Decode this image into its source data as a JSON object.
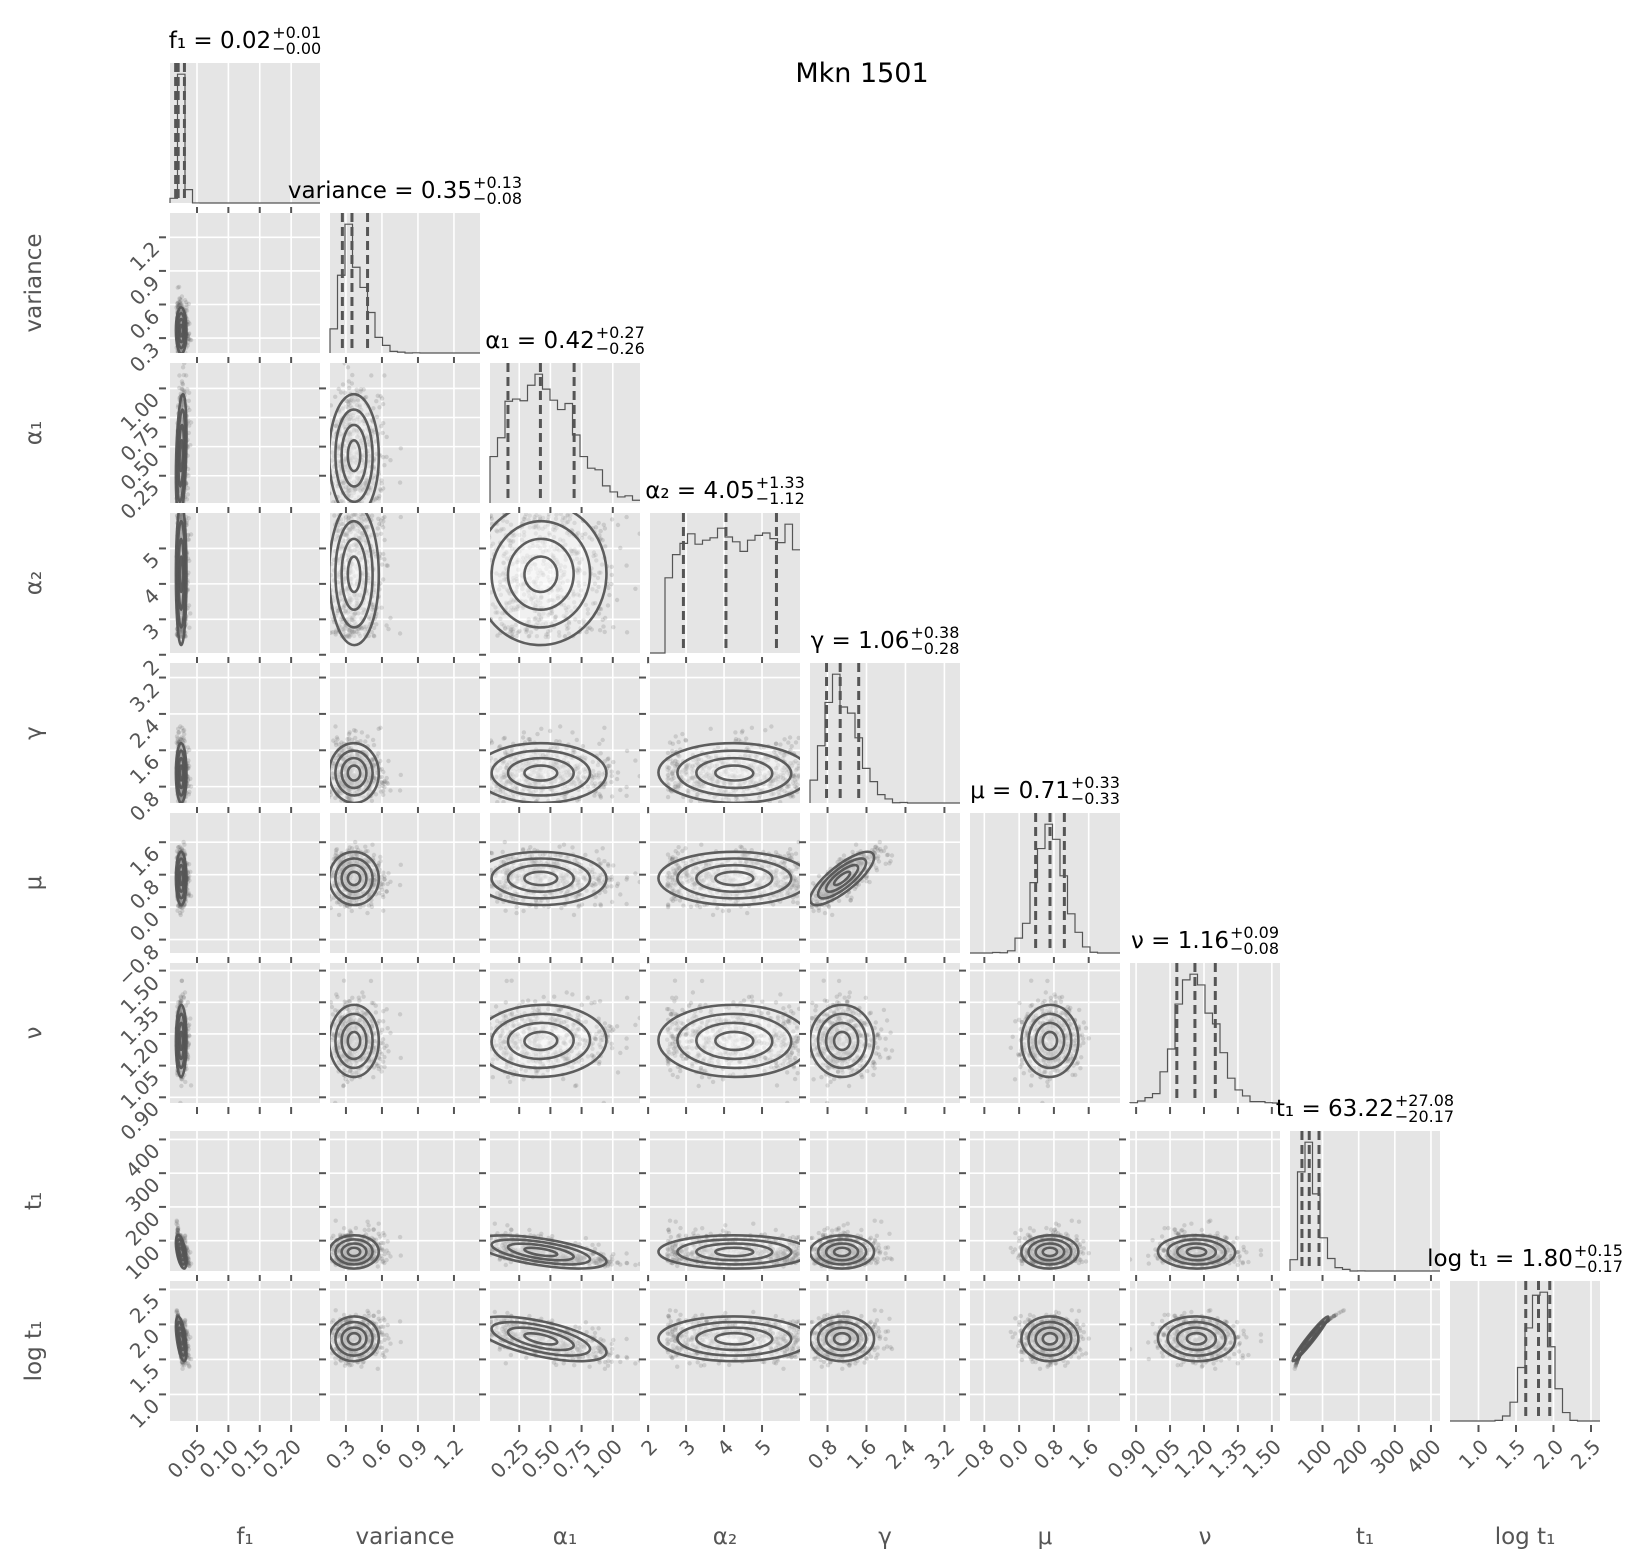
{
  "chart_data": {
    "type": "corner",
    "title": "Mkn 1501",
    "quantiles": [
      0.16,
      0.5,
      0.84
    ],
    "grid": true,
    "params": [
      {
        "label": "f₁",
        "title_main": "f₁ = 0.02",
        "title_plus": "+0.01",
        "title_minus": "−0.00",
        "median": 0.02,
        "plus": 0.01,
        "minus": 0.004,
        "range": [
          0.007,
          0.246
        ],
        "ticks": [
          0.05,
          0.1,
          0.15,
          0.2
        ],
        "tick_labels": [
          "0.05",
          "0.10",
          "0.15",
          "0.20"
        ]
      },
      {
        "label": "variance",
        "title_main": "variance = 0.35",
        "title_plus": "+0.13",
        "title_minus": "−0.08",
        "median": 0.35,
        "plus": 0.13,
        "minus": 0.08,
        "range": [
          0.167,
          1.417
        ],
        "ticks": [
          0.3,
          0.6,
          0.9,
          1.2
        ],
        "tick_labels": [
          "0.3",
          "0.6",
          "0.9",
          "1.2"
        ]
      },
      {
        "label": "α₁",
        "title_main": "α₁ = 0.42",
        "title_plus": "+0.27",
        "title_minus": "−0.26",
        "median": 0.42,
        "plus": 0.27,
        "minus": 0.26,
        "range": [
          0.016,
          1.218
        ],
        "ticks": [
          0.25,
          0.5,
          0.75,
          1.0
        ],
        "tick_labels": [
          "0.25",
          "0.50",
          "0.75",
          "1.00"
        ]
      },
      {
        "label": "α₂",
        "title_main": "α₂ = 4.05",
        "title_plus": "+1.33",
        "title_minus": "−1.12",
        "median": 4.05,
        "plus": 1.33,
        "minus": 1.12,
        "range": [
          2.05,
          6.0
        ],
        "ticks": [
          2,
          3,
          4,
          5
        ],
        "tick_labels": [
          "2",
          "3",
          "4",
          "5"
        ]
      },
      {
        "label": "γ",
        "title_main": "γ = 1.06",
        "title_plus": "+0.38",
        "title_minus": "−0.28",
        "median": 1.06,
        "plus": 0.38,
        "minus": 0.28,
        "range": [
          0.44,
          3.52
        ],
        "ticks": [
          0.8,
          1.6,
          2.4,
          3.2
        ],
        "tick_labels": [
          "0.8",
          "1.6",
          "2.4",
          "3.2"
        ]
      },
      {
        "label": "μ",
        "title_main": "μ = 0.71",
        "title_plus": "+0.33",
        "title_minus": "−0.33",
        "median": 0.71,
        "plus": 0.33,
        "minus": 0.33,
        "range": [
          -1.13,
          2.32
        ],
        "ticks": [
          -0.8,
          0.0,
          0.8,
          1.6
        ],
        "tick_labels": [
          "−0.8",
          "0.0",
          "0.8",
          "1.6"
        ]
      },
      {
        "label": "ν",
        "title_main": "ν = 1.16",
        "title_plus": "+0.09",
        "title_minus": "−0.08",
        "median": 1.16,
        "plus": 0.09,
        "minus": 0.08,
        "range": [
          0.873,
          1.536
        ],
        "ticks": [
          0.9,
          1.05,
          1.2,
          1.35,
          1.5
        ],
        "tick_labels": [
          "0.90",
          "1.05",
          "1.20",
          "1.35",
          "1.50"
        ]
      },
      {
        "label": "t₁",
        "title_main": "t₁ = 63.22",
        "title_plus": "+27.08",
        "title_minus": "−20.17",
        "median": 63.22,
        "plus": 27.08,
        "minus": 20.17,
        "range": [
          10,
          425
        ],
        "ticks": [
          100,
          200,
          300,
          400
        ],
        "tick_labels": [
          "100",
          "200",
          "300",
          "400"
        ]
      },
      {
        "label": "log t₁",
        "title_main": "log t₁ = 1.80",
        "title_plus": "+0.15",
        "title_minus": "−0.17",
        "median": 1.8,
        "plus": 0.15,
        "minus": 0.17,
        "range": [
          0.62,
          2.62
        ],
        "ticks": [
          1.0,
          1.5,
          2.0,
          2.5
        ],
        "tick_labels": [
          "1.0",
          "1.5",
          "2.0",
          "2.5"
        ]
      }
    ]
  },
  "colors": {
    "panel_bg": "#e5e5e5",
    "grid": "#ffffff",
    "line": "#555555",
    "tick_text": "#555555"
  }
}
